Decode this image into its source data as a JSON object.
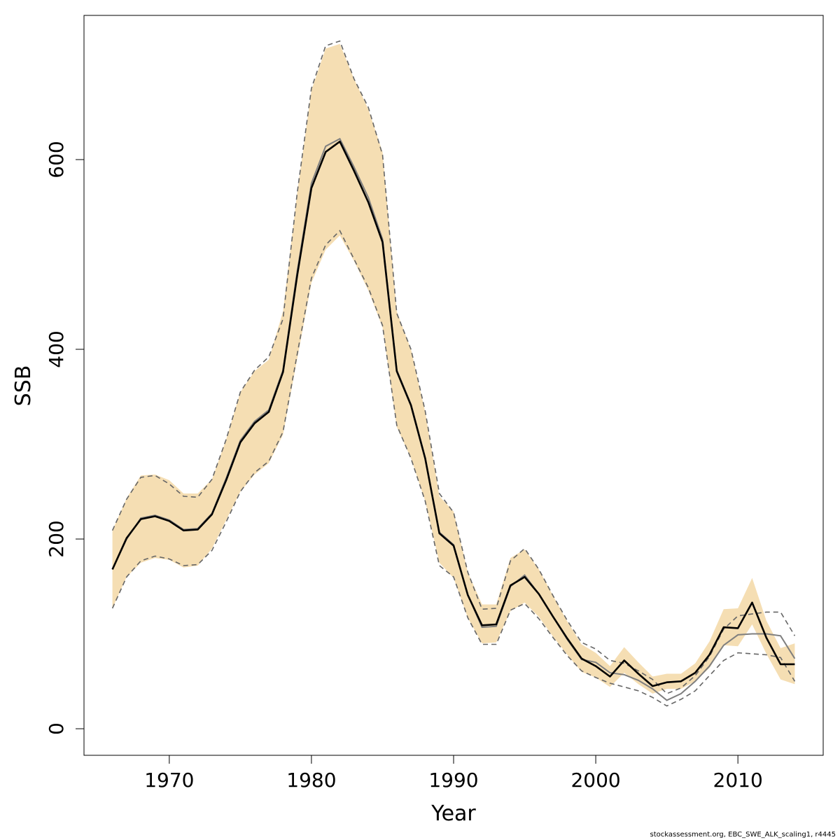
{
  "chart_data": {
    "type": "line",
    "xlabel": "Year",
    "ylabel": "SSB",
    "xlim": [
      1964,
      2016
    ],
    "ylim": [
      -28,
      752
    ],
    "x_ticks": [
      1970,
      1980,
      1990,
      2000,
      2010
    ],
    "y_ticks": [
      0,
      200,
      400,
      600
    ],
    "x": [
      1966,
      1967,
      1968,
      1969,
      1970,
      1971,
      1972,
      1973,
      1974,
      1975,
      1976,
      1977,
      1978,
      1979,
      1980,
      1981,
      1982,
      1983,
      1984,
      1985,
      1986,
      1987,
      1988,
      1989,
      1990,
      1991,
      1992,
      1993,
      1994,
      1995,
      1996,
      1997,
      1998,
      1999,
      2000,
      2001,
      2002,
      2003,
      2004,
      2005,
      2006,
      2007,
      2008,
      2009,
      2010,
      2011,
      2012,
      2013,
      2014
    ],
    "series": [
      {
        "role": "estimate",
        "color": "#000000",
        "values": [
          168,
          201,
          221,
          224,
          219,
          209,
          210,
          226,
          262,
          302,
          322,
          334,
          376,
          478,
          570,
          608,
          619,
          588,
          555,
          513,
          377,
          341,
          285,
          206,
          193,
          141,
          109,
          110,
          151,
          160,
          142,
          118,
          95,
          74,
          66,
          55,
          72,
          58,
          45,
          49,
          50,
          59,
          78,
          107,
          106,
          133,
          96,
          68,
          68
        ]
      },
      {
        "role": "estimate-alternate",
        "color": "#7f7f7f",
        "values": [
          168,
          200,
          222,
          225,
          220,
          210,
          211,
          227,
          264,
          304,
          324,
          336,
          378,
          482,
          575,
          614,
          622,
          592,
          560,
          516,
          378,
          342,
          286,
          207,
          194,
          141,
          107,
          108,
          150,
          162,
          142,
          118,
          94,
          73,
          70,
          59,
          57,
          51,
          42,
          30,
          37,
          50,
          66,
          88,
          99,
          100,
          100,
          98,
          74
        ]
      }
    ],
    "band": {
      "color": "#f5deb3",
      "lower": [
        127,
        160,
        175,
        180,
        178,
        170,
        172,
        190,
        220,
        250,
        268,
        280,
        310,
        390,
        470,
        505,
        520,
        493,
        462,
        423,
        318,
        285,
        240,
        175,
        159,
        117,
        90,
        91,
        124,
        133,
        118,
        97,
        78,
        60,
        54,
        44,
        59,
        47,
        37,
        42,
        42,
        50,
        64,
        88,
        87,
        110,
        79,
        52,
        47
      ],
      "upper": [
        209,
        243,
        267,
        268,
        262,
        248,
        248,
        263,
        305,
        355,
        377,
        389,
        440,
        565,
        673,
        717,
        722,
        685,
        653,
        608,
        440,
        400,
        334,
        245,
        229,
        165,
        131,
        131,
        180,
        189,
        168,
        140,
        113,
        89,
        80,
        66,
        86,
        70,
        55,
        58,
        58,
        69,
        92,
        126,
        127,
        159,
        114,
        85,
        90
      ]
    },
    "dashed_bounds": {
      "color": "#666666",
      "lower": [
        127,
        160,
        177,
        182,
        179,
        172,
        173,
        188,
        218,
        250,
        270,
        282,
        313,
        395,
        475,
        510,
        525,
        495,
        465,
        425,
        320,
        285,
        240,
        172,
        160,
        117,
        89,
        89,
        125,
        132,
        116,
        96,
        77,
        61,
        54,
        48,
        44,
        40,
        33,
        24,
        31,
        40,
        56,
        72,
        80,
        79,
        78,
        75,
        50
      ],
      "upper": [
        209,
        242,
        265,
        267,
        258,
        245,
        244,
        263,
        305,
        355,
        378,
        392,
        432,
        565,
        675,
        720,
        725,
        685,
        655,
        605,
        438,
        400,
        335,
        248,
        228,
        165,
        126,
        127,
        177,
        190,
        168,
        140,
        114,
        91,
        84,
        72,
        69,
        61,
        52,
        37,
        43,
        56,
        76,
        105,
        119,
        121,
        123,
        123,
        98
      ]
    }
  },
  "credit": "stockassessment.org, EBC_SWE_ALK_scaling1, r4445"
}
